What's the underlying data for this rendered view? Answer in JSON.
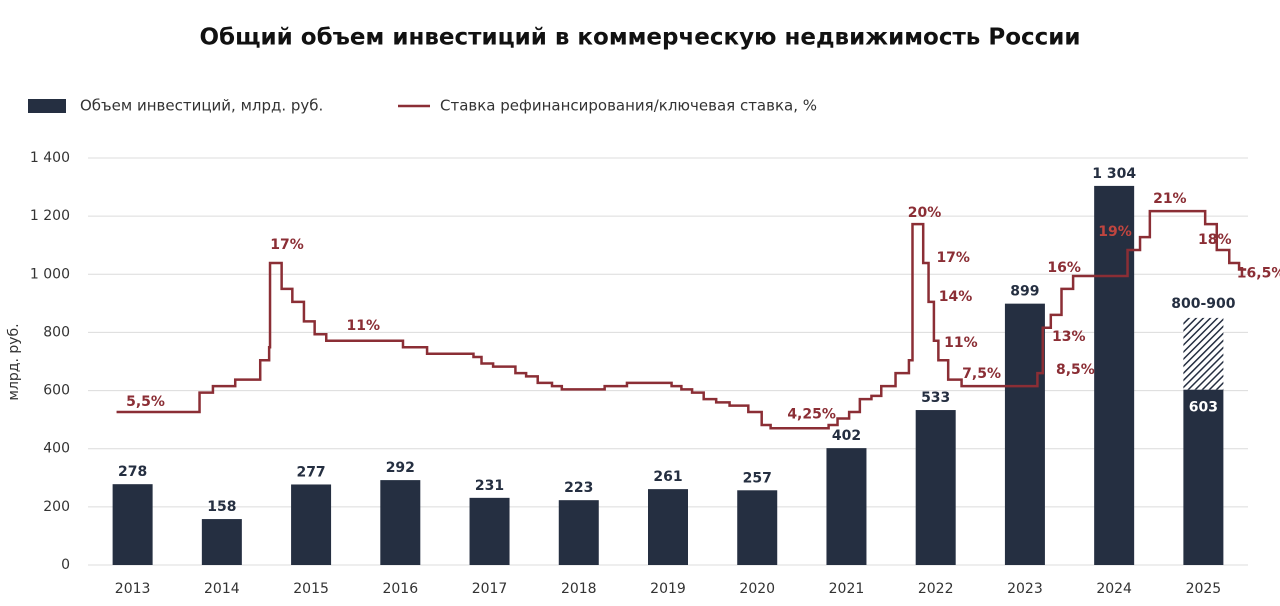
{
  "chart_data": {
    "type": "bar",
    "title": "Общий объем инвестиций в коммерческую недвижимость России",
    "y_label": "млрд. руб.",
    "categories": [
      "2013",
      "2014",
      "2015",
      "2016",
      "2017",
      "2018",
      "2019",
      "2020",
      "2021",
      "2022",
      "2023",
      "2024",
      "2025"
    ],
    "ylim": [
      0,
      1400
    ],
    "yticks": [
      0,
      200,
      400,
      600,
      800,
      {
        "value": 1000,
        "label": "1 000"
      },
      {
        "value": 1200,
        "label": "1 200"
      },
      {
        "value": 1400,
        "label": "1 400"
      }
    ],
    "grid": true,
    "y2lim": [
      -6.3,
      25.1
    ],
    "series": [
      {
        "name": "Объем инвестиций, млрд. руб.",
        "color": "#252f41",
        "values": [
          278,
          158,
          277,
          292,
          231,
          223,
          261,
          257,
          402,
          533,
          899,
          1304,
          603
        ],
        "value_labels": [
          "278",
          "158",
          "277",
          "292",
          "231",
          "223",
          "261",
          "257",
          "402",
          "533",
          "899",
          "1 304",
          "603"
        ]
      },
      {
        "name": "Ставка рефинансирования/ключевая ставка, %",
        "color": "#8b2e35",
        "type": "step",
        "axis": "y2",
        "x": [
          2012.82,
          2013.75,
          2013.9,
          2014.15,
          2014.43,
          2014.53,
          2014.54,
          2014.67,
          2014.79,
          2014.92,
          2015.04,
          2015.17,
          2016.03,
          2016.3,
          2016.82,
          2016.91,
          2017.04,
          2017.29,
          2017.41,
          2017.54,
          2017.7,
          2017.81,
          2018.29,
          2018.54,
          2019.04,
          2019.15,
          2019.27,
          2019.4,
          2019.54,
          2019.69,
          2019.9,
          2020.05,
          2020.15,
          2020.8,
          2020.9,
          2021.03,
          2021.15,
          2021.28,
          2021.39,
          2021.55,
          2021.7,
          2021.74,
          2021.86,
          2021.92,
          2021.98,
          2022.03,
          2022.14,
          2022.29,
          2023.14,
          2023.2,
          2023.29,
          2023.41,
          2023.54,
          2024.15,
          2024.29,
          2024.4,
          2025.02,
          2025.15,
          2025.29,
          2025.4,
          2025.48
        ],
        "values": [
          5.5,
          7,
          7.5,
          8,
          9.5,
          10.5,
          17,
          15,
          14,
          12.5,
          11.5,
          11,
          10.5,
          10,
          9.75,
          9.25,
          9,
          8.5,
          8.25,
          7.75,
          7.5,
          7.25,
          7.5,
          7.75,
          7.5,
          7.25,
          7,
          6.5,
          6.25,
          6,
          5.5,
          4.5,
          4.25,
          4.5,
          5,
          5.5,
          6.5,
          6.75,
          7.5,
          8.5,
          9.5,
          20,
          17,
          14,
          11,
          9.5,
          8,
          7.5,
          8.5,
          12,
          13,
          15,
          16,
          18,
          19,
          21,
          20,
          18,
          17,
          16.5,
          16.5
        ],
        "value_labels": [
          "5,5%",
          null,
          null,
          null,
          null,
          null,
          "17%",
          null,
          null,
          null,
          null,
          "11%",
          null,
          null,
          null,
          null,
          null,
          null,
          null,
          null,
          null,
          null,
          null,
          null,
          null,
          null,
          null,
          null,
          null,
          null,
          null,
          null,
          "4,25%",
          null,
          null,
          null,
          null,
          null,
          null,
          null,
          null,
          "20%",
          "17%",
          "14%",
          "11%",
          null,
          null,
          "7,5%",
          "8,5%",
          null,
          "13%",
          null,
          "16%",
          null,
          "19%",
          "21%",
          null,
          "18%",
          null,
          "16,5%",
          null
        ]
      }
    ],
    "forecast": {
      "category": "2025",
      "values": [
        800,
        900
      ],
      "label": "800-900"
    }
  }
}
